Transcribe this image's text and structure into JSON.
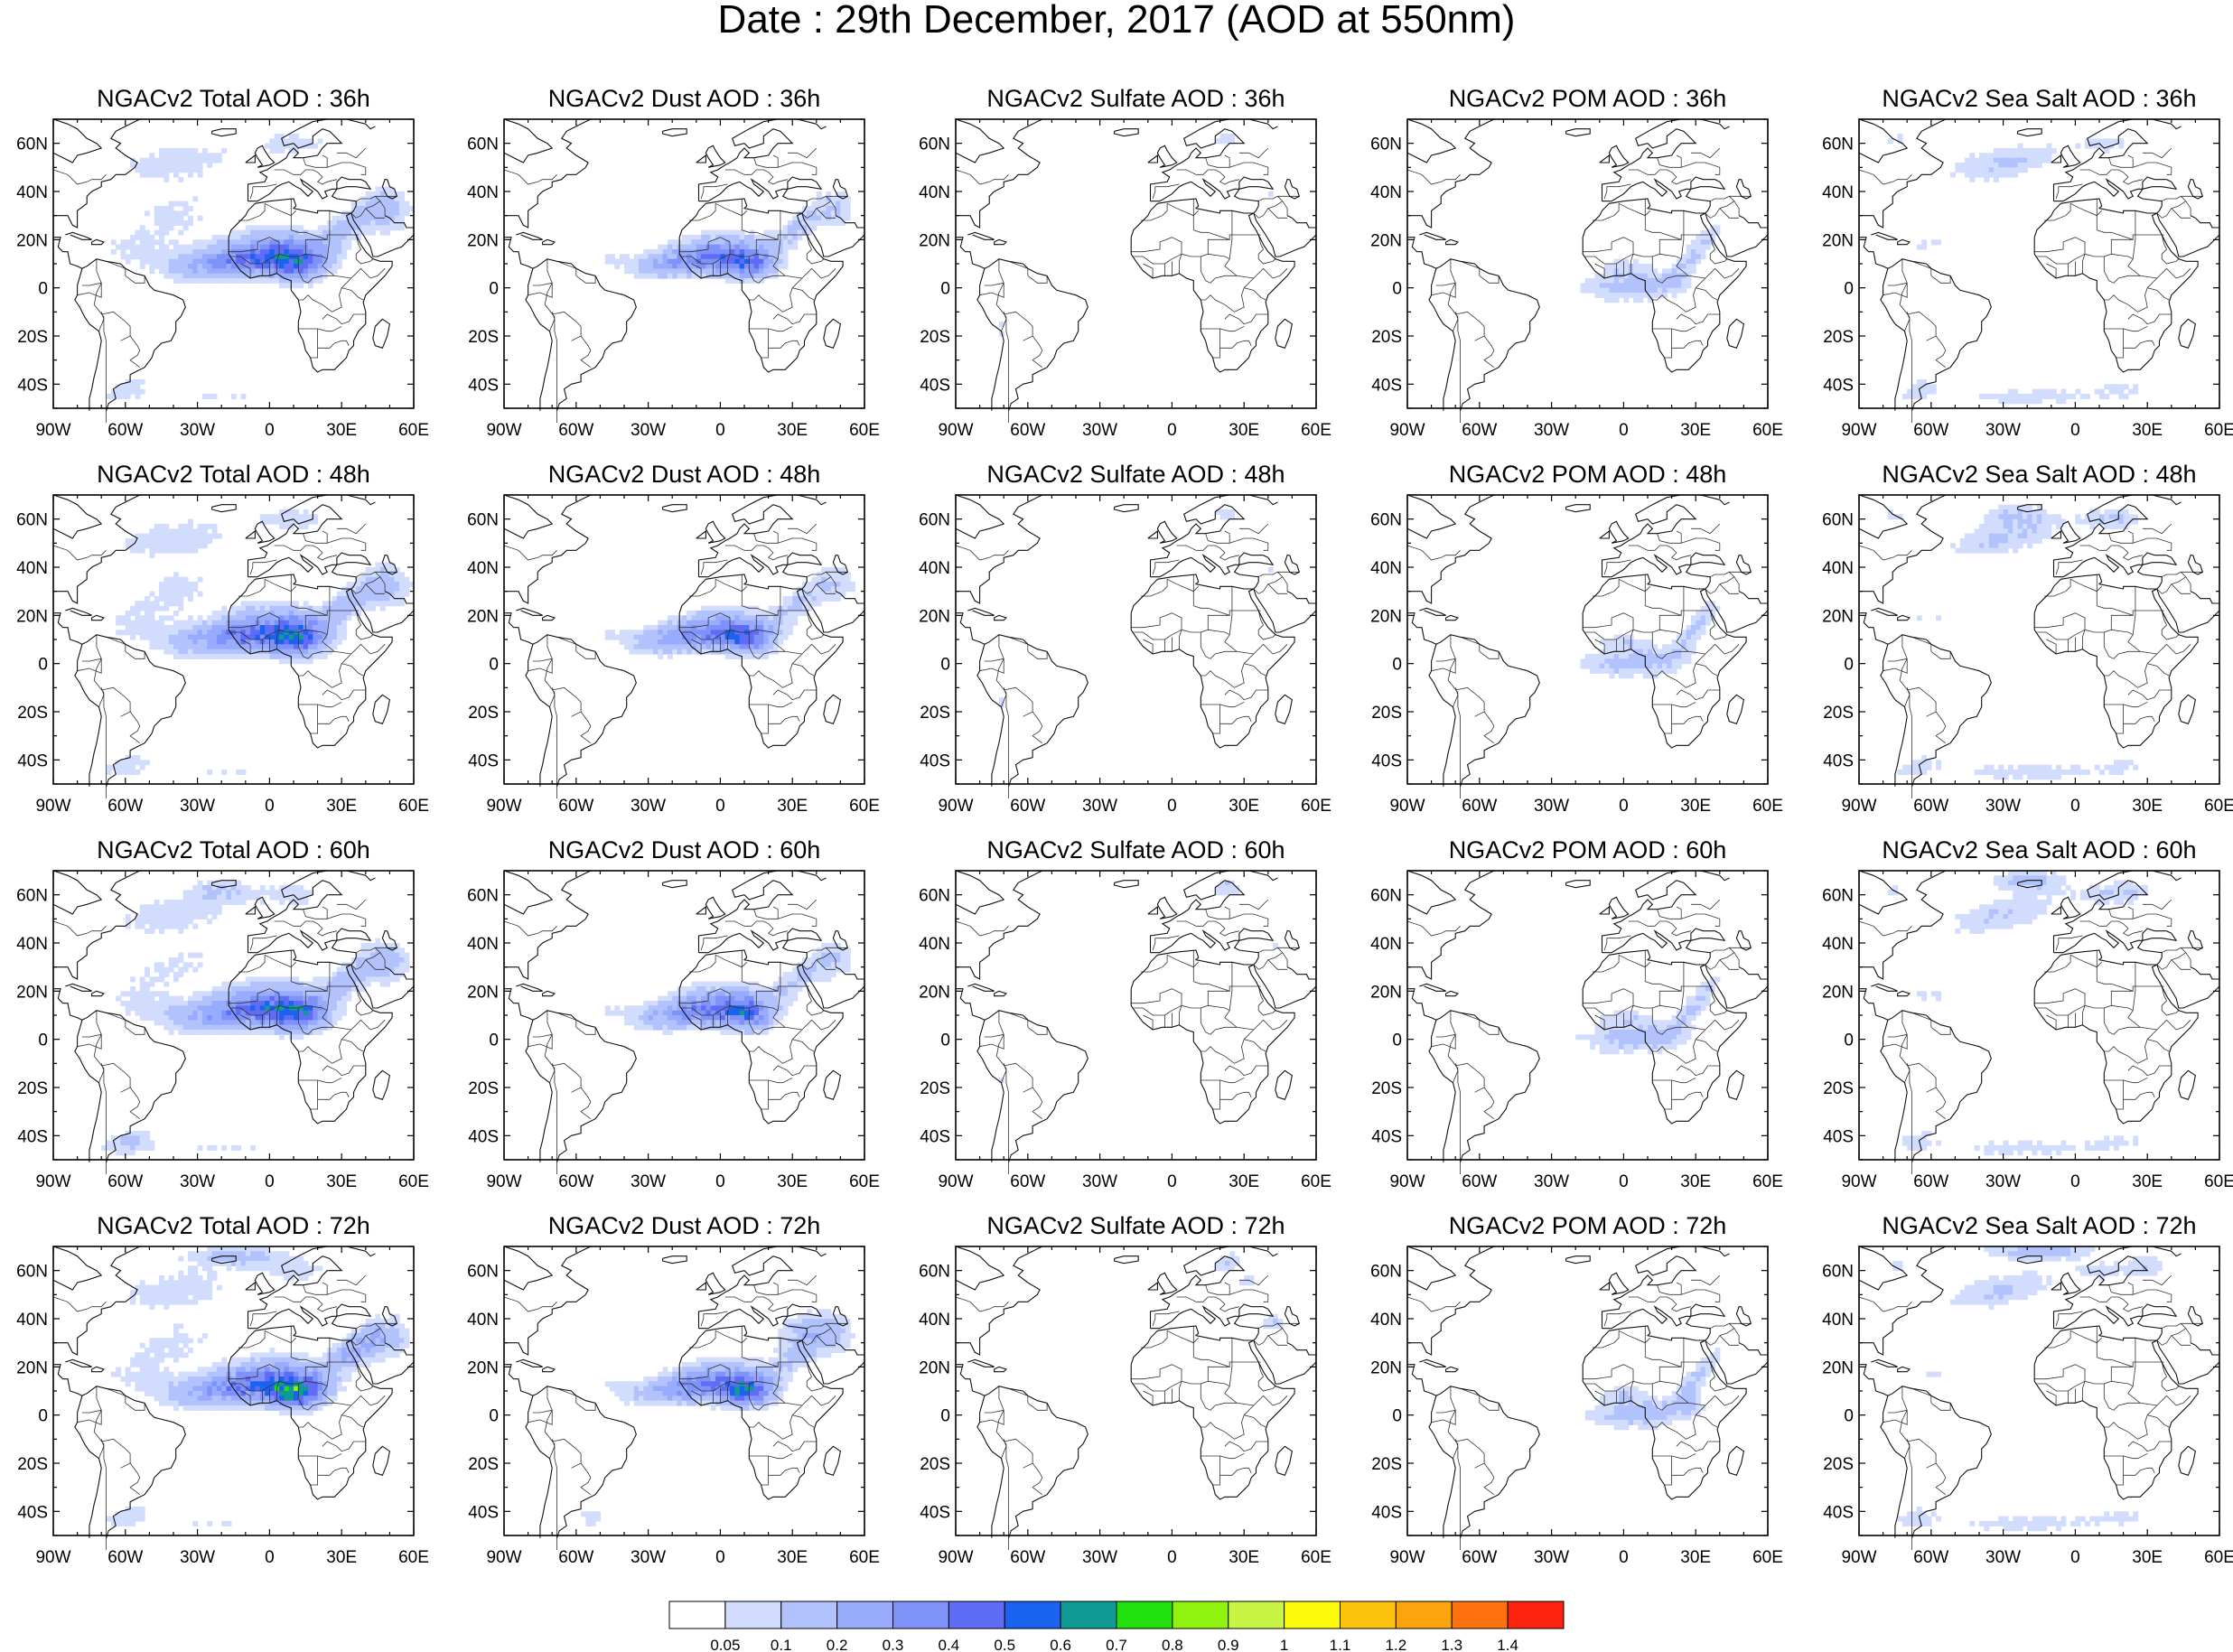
{
  "title": "Date : 29th December, 2017 (AOD at 550nm)",
  "panels": [
    {
      "title": "NGACv2 Total AOD : 36h",
      "species": "total",
      "hour": 36
    },
    {
      "title": "NGACv2 Dust AOD : 36h",
      "species": "dust",
      "hour": 36
    },
    {
      "title": "NGACv2 Sulfate AOD : 36h",
      "species": "sulfate",
      "hour": 36
    },
    {
      "title": "NGACv2 POM AOD : 36h",
      "species": "pom",
      "hour": 36
    },
    {
      "title": "NGACv2 Sea Salt AOD : 36h",
      "species": "seasalt",
      "hour": 36
    },
    {
      "title": "NGACv2 Total AOD : 48h",
      "species": "total",
      "hour": 48
    },
    {
      "title": "NGACv2 Dust AOD : 48h",
      "species": "dust",
      "hour": 48
    },
    {
      "title": "NGACv2 Sulfate AOD : 48h",
      "species": "sulfate",
      "hour": 48
    },
    {
      "title": "NGACv2 POM AOD : 48h",
      "species": "pom",
      "hour": 48
    },
    {
      "title": "NGACv2 Sea Salt AOD : 48h",
      "species": "seasalt",
      "hour": 48
    },
    {
      "title": "NGACv2 Total AOD : 60h",
      "species": "total",
      "hour": 60
    },
    {
      "title": "NGACv2 Dust AOD : 60h",
      "species": "dust",
      "hour": 60
    },
    {
      "title": "NGACv2 Sulfate AOD : 60h",
      "species": "sulfate",
      "hour": 60
    },
    {
      "title": "NGACv2 POM AOD : 60h",
      "species": "pom",
      "hour": 60
    },
    {
      "title": "NGACv2 Sea Salt AOD : 60h",
      "species": "seasalt",
      "hour": 60
    },
    {
      "title": "NGACv2 Total AOD : 72h",
      "species": "total",
      "hour": 72
    },
    {
      "title": "NGACv2 Dust AOD : 72h",
      "species": "dust",
      "hour": 72
    },
    {
      "title": "NGACv2 Sulfate AOD : 72h",
      "species": "sulfate",
      "hour": 72
    },
    {
      "title": "NGACv2 POM AOD : 72h",
      "species": "pom",
      "hour": 72
    },
    {
      "title": "NGACv2 Sea Salt  AOD : 72h",
      "species": "seasalt",
      "hour": 72
    }
  ],
  "map_extent": {
    "lon_min": -90,
    "lon_max": 60,
    "lat_min": -50,
    "lat_max": 70
  },
  "lon_ticks": [
    "90W",
    "60W",
    "30W",
    "0",
    "30E",
    "60E"
  ],
  "lat_ticks": [
    "60N",
    "40N",
    "20N",
    "0",
    "20S",
    "40S"
  ],
  "colorbar": {
    "labels": [
      "0.05",
      "0.1",
      "0.2",
      "0.3",
      "0.4",
      "0.5",
      "0.6",
      "0.7",
      "0.8",
      "0.9",
      "1",
      "1.1",
      "1.2",
      "1.3",
      "1.4"
    ],
    "colors": [
      "#ffffff",
      "#d2dcfd",
      "#b2c2fd",
      "#98abfc",
      "#7f92f9",
      "#5f6cf5",
      "#1a62f0",
      "#0f9b94",
      "#22e00e",
      "#8ff20f",
      "#c8f446",
      "#fcfb0c",
      "#fdc30c",
      "#fda30e",
      "#fd720f",
      "#fd240f"
    ]
  }
}
